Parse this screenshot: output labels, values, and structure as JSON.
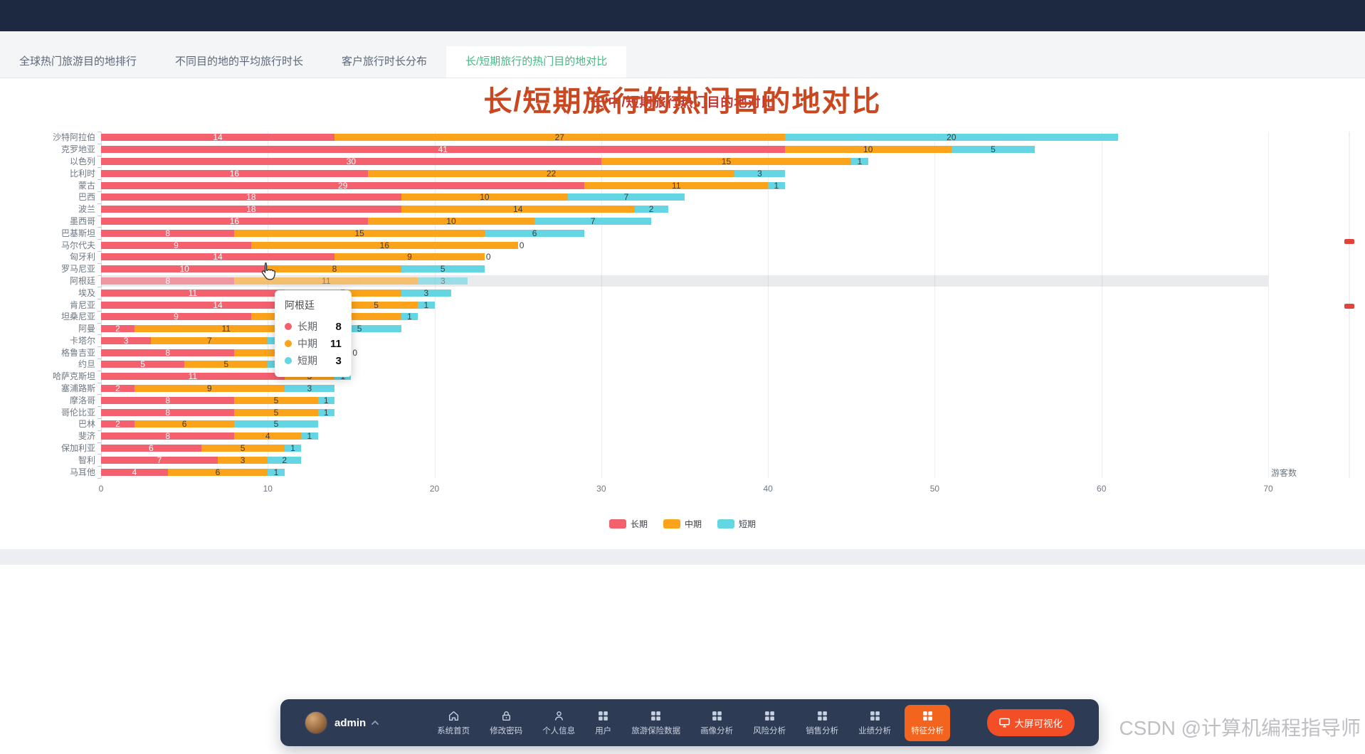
{
  "tabs": [
    {
      "key": "global-ranking",
      "label": "全球热门旅游目的地排行",
      "active": false
    },
    {
      "key": "avg-duration",
      "label": "不同目的地的平均旅行时长",
      "active": false
    },
    {
      "key": "duration-distribution",
      "label": "客户旅行时长分布",
      "active": false
    },
    {
      "key": "long-short-compare",
      "label": "长/短期旅行的热门目的地对比",
      "active": true
    }
  ],
  "chart_data": {
    "type": "bar",
    "orientation": "horizontal",
    "stacked": true,
    "title": "长/中/短期旅行热门目的地对比",
    "xlabel": "游客数",
    "xlim": [
      0,
      70
    ],
    "x_ticks": [
      0,
      10,
      20,
      30,
      40,
      50,
      60,
      70
    ],
    "grid": true,
    "legend_position": "bottom",
    "categories": [
      "沙特阿拉伯",
      "克罗地亚",
      "以色列",
      "比利时",
      "蒙古",
      "巴西",
      "波兰",
      "墨西哥",
      "巴基斯坦",
      "马尔代夫",
      "匈牙利",
      "罗马尼亚",
      "阿根廷",
      "埃及",
      "肯尼亚",
      "坦桑尼亚",
      "阿曼",
      "卡塔尔",
      "格鲁吉亚",
      "约旦",
      "哈萨克斯坦",
      "塞浦路斯",
      "摩洛哥",
      "哥伦比亚",
      "巴林",
      "斐济",
      "保加利亚",
      "智利",
      "马耳他"
    ],
    "series": [
      {
        "name": "长期",
        "color": "#f4616e",
        "label_color": "#ffffff",
        "values": [
          14,
          41,
          30,
          16,
          29,
          18,
          18,
          16,
          8,
          9,
          14,
          10,
          8,
          11,
          14,
          9,
          2,
          3,
          8,
          5,
          11,
          2,
          8,
          8,
          2,
          8,
          6,
          7,
          4
        ]
      },
      {
        "name": "中期",
        "color": "#fba31b",
        "label_color": "#3c3c3c",
        "values": [
          27,
          10,
          15,
          22,
          11,
          10,
          14,
          10,
          15,
          16,
          9,
          8,
          11,
          7,
          5,
          9,
          11,
          7,
          7,
          5,
          3,
          9,
          5,
          5,
          6,
          4,
          5,
          3,
          6
        ]
      },
      {
        "name": "短期",
        "color": "#64d5e2",
        "label_color": "#3c3c3c",
        "values": [
          20,
          5,
          1,
          3,
          1,
          7,
          2,
          7,
          6,
          0,
          0,
          5,
          3,
          3,
          1,
          1,
          5,
          5,
          0,
          5,
          1,
          3,
          1,
          1,
          5,
          1,
          1,
          2,
          1
        ]
      }
    ],
    "hover": {
      "category": "阿根廷",
      "index": 12
    }
  },
  "tooltip": {
    "title": "阿根廷",
    "rows": [
      {
        "label": "长期",
        "value": "8",
        "color": "#f4616e"
      },
      {
        "label": "中期",
        "value": "11",
        "color": "#fba31b"
      },
      {
        "label": "短期",
        "value": "3",
        "color": "#64d5e2"
      }
    ]
  },
  "section": {
    "title": "长/短期旅行的热门目的地对比"
  },
  "bottom_nav": {
    "user": "admin",
    "items": [
      {
        "key": "home",
        "icon": "home",
        "label": "系统首页",
        "active": false
      },
      {
        "key": "change-password",
        "icon": "lock",
        "label": "修改密码",
        "active": false
      },
      {
        "key": "profile",
        "icon": "user",
        "label": "个人信息",
        "active": false
      },
      {
        "key": "users",
        "icon": "grid",
        "label": "用户",
        "active": false
      },
      {
        "key": "insurance-data",
        "icon": "grid",
        "label": "旅游保险数据",
        "active": false
      },
      {
        "key": "portrait-analysis",
        "icon": "grid",
        "label": "画像分析",
        "active": false
      },
      {
        "key": "risk-analysis",
        "icon": "grid",
        "label": "风险分析",
        "active": false
      },
      {
        "key": "sales-analysis",
        "icon": "grid",
        "label": "销售分析",
        "active": false
      },
      {
        "key": "performance-analysis",
        "icon": "grid",
        "label": "业绩分析",
        "active": false
      },
      {
        "key": "feature-analysis",
        "icon": "grid",
        "label": "特征分析",
        "active": true
      }
    ],
    "cta": {
      "label": "大屏可视化"
    }
  },
  "watermark": "CSDN @计算机编程指导师"
}
